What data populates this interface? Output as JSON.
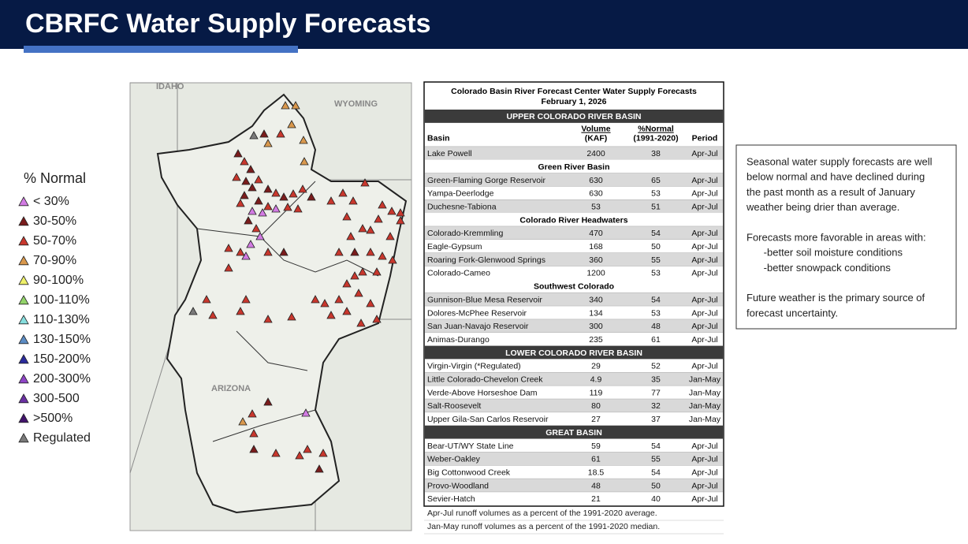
{
  "header": {
    "title": "CBRFC Water Supply Forecasts"
  },
  "legend": {
    "title": "% Normal",
    "items": [
      {
        "label": "< 30%",
        "color": "#d27be3"
      },
      {
        "label": "30-50%",
        "color": "#7a1c1c"
      },
      {
        "label": "50-70%",
        "color": "#c8372d"
      },
      {
        "label": "70-90%",
        "color": "#d9984d"
      },
      {
        "label": "90-100%",
        "color": "#eef06a"
      },
      {
        "label": "100-110%",
        "color": "#93d46a"
      },
      {
        "label": "110-130%",
        "color": "#86dede"
      },
      {
        "label": "130-150%",
        "color": "#5c8cc4"
      },
      {
        "label": "150-200%",
        "color": "#2b2b9c"
      },
      {
        "label": "200-300%",
        "color": "#8e45c6"
      },
      {
        "label": "300-500",
        "color": "#6a30a2"
      },
      {
        "label": ">500%",
        "color": "#42136c"
      },
      {
        "label": "Regulated",
        "color": "#7a7a7a"
      }
    ]
  },
  "map": {
    "labels": [
      "IDAHO",
      "WYOMING",
      "ARIZONA"
    ]
  },
  "table": {
    "title": "Colorado Basin River Forecast Center Water Supply Forecasts",
    "date": "February 1, 2026",
    "columns": [
      [
        "Basin"
      ],
      [
        "Volume",
        "(KAF)"
      ],
      [
        "%Normal",
        "(1991-2020)"
      ],
      [
        "Period"
      ]
    ],
    "sections": [
      {
        "title": "UPPER COLORADO RIVER BASIN",
        "groups": [
          {
            "rows": [
              [
                "Lake Powell",
                2400,
                38,
                "Apr-Jul"
              ]
            ]
          },
          {
            "title": "Green River Basin",
            "rows": [
              [
                "Green-Flaming Gorge Reservoir",
                630,
                65,
                "Apr-Jul"
              ],
              [
                "Yampa-Deerlodge",
                630,
                53,
                "Apr-Jul"
              ],
              [
                "Duchesne-Tabiona",
                53,
                51,
                "Apr-Jul"
              ]
            ]
          },
          {
            "title": "Colorado River Headwaters",
            "rows": [
              [
                "Colorado-Kremmling",
                470,
                54,
                "Apr-Jul"
              ],
              [
                "Eagle-Gypsum",
                168,
                50,
                "Apr-Jul"
              ],
              [
                "Roaring Fork-Glenwood Springs",
                360,
                55,
                "Apr-Jul"
              ],
              [
                "Colorado-Cameo",
                1200,
                53,
                "Apr-Jul"
              ]
            ]
          },
          {
            "title": "Southwest Colorado",
            "rows": [
              [
                "Gunnison-Blue Mesa Reservoir",
                340,
                54,
                "Apr-Jul"
              ],
              [
                "Dolores-McPhee Reservoir",
                134,
                53,
                "Apr-Jul"
              ],
              [
                "San Juan-Navajo Reservoir",
                300,
                48,
                "Apr-Jul"
              ],
              [
                "Animas-Durango",
                235,
                61,
                "Apr-Jul"
              ]
            ]
          }
        ]
      },
      {
        "title": "LOWER COLORADO RIVER BASIN",
        "groups": [
          {
            "rows": [
              [
                "Virgin-Virgin (*Regulated)",
                29,
                52,
                "Apr-Jul"
              ],
              [
                "Little Colorado-Chevelon Creek",
                4.9,
                35,
                "Jan-May"
              ],
              [
                "Verde-Above Horseshoe Dam",
                119,
                77,
                "Jan-May"
              ],
              [
                "Salt-Roosevelt",
                80,
                32,
                "Jan-May"
              ],
              [
                "Upper Gila-San Carlos Reservoir",
                27,
                37,
                "Jan-May"
              ]
            ]
          }
        ]
      },
      {
        "title": "GREAT BASIN",
        "groups": [
          {
            "rows": [
              [
                "Bear-UT/WY State Line",
                59,
                54,
                "Apr-Jul"
              ],
              [
                "Weber-Oakley",
                61,
                55,
                "Apr-Jul"
              ],
              [
                "Big Cottonwood Creek",
                18.5,
                54,
                "Apr-Jul"
              ],
              [
                "Provo-Woodland",
                48,
                50,
                "Apr-Jul"
              ],
              [
                "Sevier-Hatch",
                21,
                40,
                "Apr-Jul"
              ]
            ]
          }
        ]
      }
    ],
    "notes": [
      "Apr-Jul runoff volumes as a percent of the 1991-2020 average.",
      "Jan-May runoff volumes as a percent of the 1991-2020 median."
    ]
  },
  "text_box": {
    "paragraphs": [
      [
        "Seasonal water supply forecasts are well",
        "below normal and have declined during",
        "the past month as a result of January",
        "weather being drier than average."
      ],
      [
        "Forecasts more favorable in areas with:",
        "      -better soil moisture conditions",
        "      -better snowpack conditions"
      ],
      [
        "Future weather is the primary source of",
        "forecast uncertainty."
      ]
    ]
  }
}
